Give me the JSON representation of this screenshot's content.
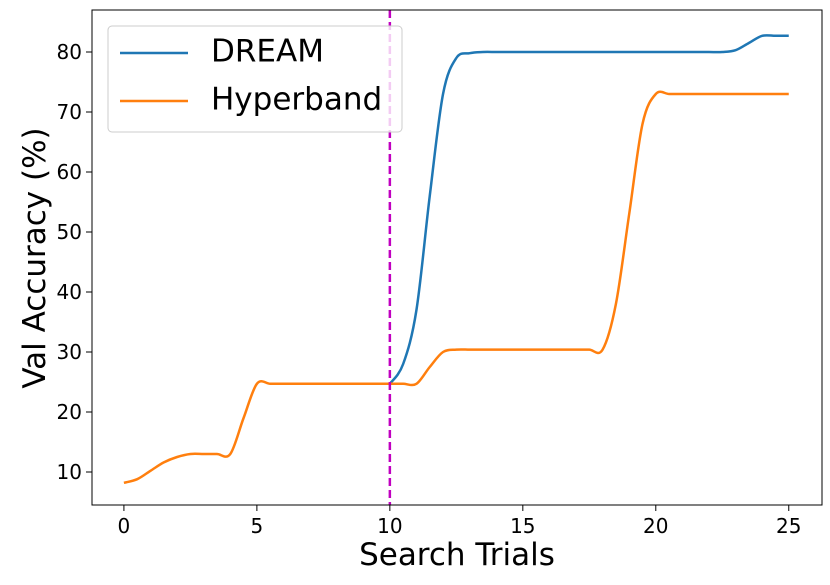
{
  "chart_data": {
    "type": "line",
    "x_label": "Search Trials",
    "y_label": "Val Accuracy (%)",
    "x": [
      0,
      0.5,
      1,
      1.5,
      2,
      2.5,
      3,
      3.5,
      4,
      4.5,
      5,
      5.5,
      6,
      6.5,
      7,
      7.5,
      8,
      8.5,
      9,
      9.5,
      10,
      10.5,
      11,
      11.5,
      12,
      12.5,
      13,
      13.5,
      14,
      14.5,
      15,
      15.5,
      16,
      16.5,
      17,
      17.5,
      18,
      18.5,
      19,
      19.5,
      20,
      20.5,
      21,
      21.5,
      22,
      22.5,
      23,
      23.5,
      24,
      24.5,
      25
    ],
    "series": [
      {
        "name": "DREAM",
        "color": "#1f77b4",
        "values": [
          null,
          null,
          null,
          null,
          null,
          null,
          null,
          null,
          null,
          null,
          null,
          null,
          null,
          null,
          null,
          null,
          null,
          null,
          null,
          null,
          24.7,
          28,
          37,
          56,
          73,
          79,
          79.8,
          80,
          80,
          80,
          80,
          80,
          80,
          80,
          80,
          80,
          80,
          80,
          80,
          80,
          80,
          80,
          80,
          80,
          80,
          80,
          80.3,
          81.5,
          82.7,
          82.7,
          82.7
        ]
      },
      {
        "name": "Hyperband",
        "color": "#ff7f0e",
        "values": [
          8.2,
          8.8,
          10.2,
          11.6,
          12.5,
          13,
          13,
          13,
          13,
          19,
          24.7,
          24.7,
          24.7,
          24.7,
          24.7,
          24.7,
          24.7,
          24.7,
          24.7,
          24.7,
          24.7,
          24.7,
          24.7,
          27.5,
          30,
          30.4,
          30.4,
          30.4,
          30.4,
          30.4,
          30.4,
          30.4,
          30.4,
          30.4,
          30.4,
          30.4,
          30.4,
          38,
          53,
          68,
          73,
          73,
          73,
          73,
          73,
          73,
          73,
          73,
          73,
          73,
          73
        ]
      }
    ],
    "vline": {
      "x": 10,
      "color": "#c000c0"
    },
    "xlim": [
      -1.2,
      26.25
    ],
    "ylim": [
      4.5,
      87
    ],
    "xticks": [
      0,
      5,
      10,
      15,
      20,
      25
    ],
    "yticks": [
      10,
      20,
      30,
      40,
      50,
      60,
      70,
      80
    ],
    "legend": "upper left"
  }
}
